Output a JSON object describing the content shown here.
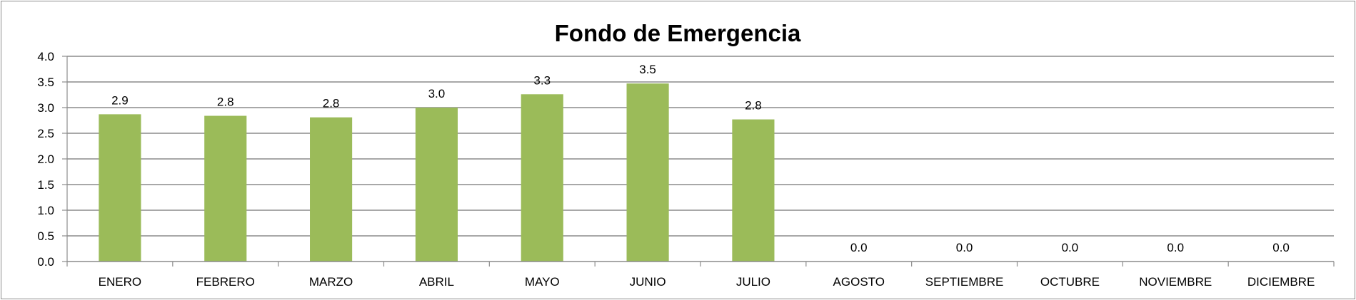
{
  "chart_data": {
    "type": "bar",
    "title": "Fondo de Emergencia",
    "xlabel": "",
    "ylabel": "",
    "ylim": [
      0,
      4
    ],
    "yticks": [
      "0.0",
      "0.5",
      "1.0",
      "1.5",
      "2.0",
      "2.5",
      "3.0",
      "3.5",
      "4.0"
    ],
    "grid": true,
    "legend": "none",
    "categories": [
      "ENERO",
      "FEBRERO",
      "MARZO",
      "ABRIL",
      "MAYO",
      "JUNIO",
      "JULIO",
      "AGOSTO",
      "SEPTIEMBRE",
      "OCTUBRE",
      "NOVIEMBRE",
      "DICIEMBRE"
    ],
    "values": [
      2.87,
      2.84,
      2.81,
      3.0,
      3.26,
      3.47,
      2.77,
      0,
      0,
      0,
      0,
      0
    ],
    "data_labels": [
      "2.9",
      "2.8",
      "2.8",
      "3.0",
      "3.3",
      "3.5",
      "2.8",
      "0.0",
      "0.0",
      "0.0",
      "0.0",
      "0.0"
    ],
    "bar_color": "#9bbb59",
    "grid_color": "#8c8c8c"
  }
}
